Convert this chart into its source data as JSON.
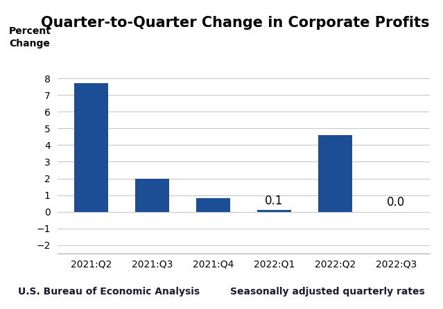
{
  "title": "Quarter-to-Quarter Change in Corporate Profits",
  "ylabel_line1": "Percent",
  "ylabel_line2": "Change",
  "categories": [
    "2021:Q2",
    "2021:Q3",
    "2021:Q4",
    "2022:Q1",
    "2022:Q2",
    "2022:Q3"
  ],
  "values": [
    7.7,
    2.0,
    0.8,
    0.1,
    4.6,
    0.0
  ],
  "bar_color": "#1C4E96",
  "annotations": {
    "2022:Q1": "0.1",
    "2022:Q3": "0.0"
  },
  "ylim": [
    -2.5,
    9
  ],
  "yticks": [
    -2,
    -1,
    0,
    1,
    2,
    3,
    4,
    5,
    6,
    7,
    8
  ],
  "footer_left": "U.S. Bureau of Economic Analysis",
  "footer_right": "Seasonally adjusted quarterly rates",
  "title_fontsize": 15,
  "axis_label_fontsize": 10,
  "tick_fontsize": 10,
  "footer_fontsize": 10,
  "annotation_fontsize": 12,
  "background_color": "#ffffff",
  "grid_color": "#c8c8c8"
}
